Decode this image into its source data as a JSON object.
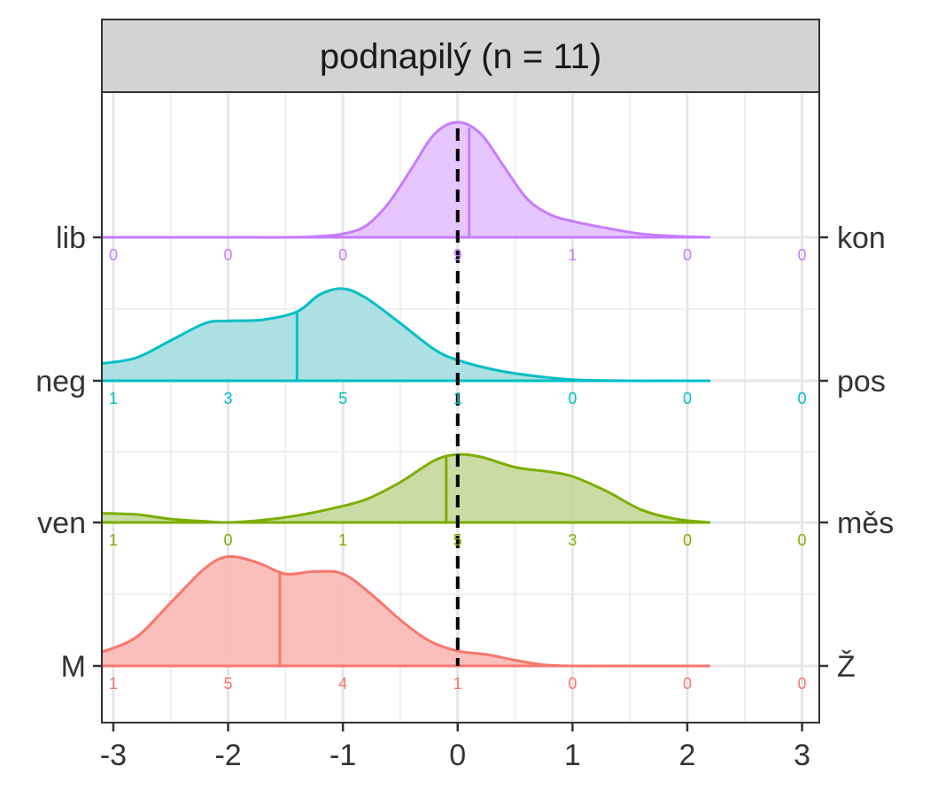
{
  "chart_data": {
    "type": "ridgeline",
    "title": "podnapilý (n = 11)",
    "xlabel": "",
    "ylabel": "",
    "xlim": [
      -3.1,
      3.15
    ],
    "x_ticks": [
      -3,
      -2,
      -1,
      0,
      1,
      2,
      3
    ],
    "x_tick_labels": [
      "-3",
      "-2",
      "-1",
      "0",
      "1",
      "2",
      "3"
    ],
    "count_positions": [
      -3,
      -2,
      -1,
      0,
      1,
      2,
      3
    ],
    "reference_line_x": 0,
    "grid": true,
    "legend": "none",
    "series": [
      {
        "left_label": "M",
        "right_label": "Ž",
        "color": "#F8766D",
        "fill": "#F9B8B3",
        "mean": -1.55,
        "counts": [
          "1",
          "5",
          "4",
          "1",
          "0",
          "0",
          "0"
        ],
        "density": [
          [
            -3.1,
            0.12
          ],
          [
            -2.8,
            0.25
          ],
          [
            -2.5,
            0.55
          ],
          [
            -2.2,
            0.85
          ],
          [
            -2.0,
            0.95
          ],
          [
            -1.75,
            0.9
          ],
          [
            -1.5,
            0.8
          ],
          [
            -1.25,
            0.82
          ],
          [
            -1.0,
            0.8
          ],
          [
            -0.75,
            0.62
          ],
          [
            -0.5,
            0.4
          ],
          [
            -0.25,
            0.22
          ],
          [
            0.0,
            0.13
          ],
          [
            0.25,
            0.1
          ],
          [
            0.5,
            0.05
          ],
          [
            0.75,
            0.01
          ],
          [
            1.0,
            0.0
          ],
          [
            1.5,
            0.0
          ],
          [
            2.0,
            0.0
          ],
          [
            2.2,
            0.0
          ]
        ]
      },
      {
        "left_label": "ven",
        "right_label": "měs",
        "color": "#7CAE00",
        "fill": "#C3D89A",
        "mean": -0.1,
        "counts": [
          "1",
          "0",
          "1",
          "5",
          "3",
          "0",
          "0"
        ],
        "density": [
          [
            -3.1,
            0.08
          ],
          [
            -2.8,
            0.07
          ],
          [
            -2.5,
            0.03
          ],
          [
            -2.2,
            0.01
          ],
          [
            -2.0,
            0.0
          ],
          [
            -1.7,
            0.02
          ],
          [
            -1.4,
            0.06
          ],
          [
            -1.1,
            0.12
          ],
          [
            -0.8,
            0.2
          ],
          [
            -0.5,
            0.35
          ],
          [
            -0.2,
            0.54
          ],
          [
            0.0,
            0.59
          ],
          [
            0.2,
            0.57
          ],
          [
            0.5,
            0.48
          ],
          [
            0.8,
            0.44
          ],
          [
            1.0,
            0.4
          ],
          [
            1.3,
            0.27
          ],
          [
            1.6,
            0.11
          ],
          [
            1.9,
            0.03
          ],
          [
            2.2,
            0.0
          ]
        ]
      },
      {
        "left_label": "neg",
        "right_label": "pos",
        "color": "#00BFC4",
        "fill": "#A3DDDF",
        "mean": -1.4,
        "counts": [
          "1",
          "3",
          "5",
          "1",
          "0",
          "0",
          "0"
        ],
        "density": [
          [
            -3.1,
            0.15
          ],
          [
            -2.8,
            0.2
          ],
          [
            -2.5,
            0.35
          ],
          [
            -2.2,
            0.5
          ],
          [
            -2.0,
            0.52
          ],
          [
            -1.7,
            0.53
          ],
          [
            -1.4,
            0.6
          ],
          [
            -1.2,
            0.75
          ],
          [
            -1.0,
            0.8
          ],
          [
            -0.8,
            0.72
          ],
          [
            -0.5,
            0.5
          ],
          [
            -0.2,
            0.27
          ],
          [
            0.0,
            0.18
          ],
          [
            0.3,
            0.1
          ],
          [
            0.6,
            0.05
          ],
          [
            1.0,
            0.01
          ],
          [
            1.5,
            0.0
          ],
          [
            2.0,
            0.0
          ],
          [
            2.2,
            0.0
          ]
        ]
      },
      {
        "left_label": "lib",
        "right_label": "kon",
        "color": "#C77CFF",
        "fill": "#E2C0FF",
        "mean": 0.1,
        "counts": [
          "0",
          "0",
          "0",
          "9",
          "1",
          "0",
          "0"
        ],
        "density": [
          [
            -3.1,
            0.0
          ],
          [
            -2.0,
            0.0
          ],
          [
            -1.5,
            0.0
          ],
          [
            -1.2,
            0.01
          ],
          [
            -1.0,
            0.03
          ],
          [
            -0.8,
            0.1
          ],
          [
            -0.6,
            0.3
          ],
          [
            -0.4,
            0.6
          ],
          [
            -0.2,
            0.9
          ],
          [
            0.0,
            1.0
          ],
          [
            0.2,
            0.9
          ],
          [
            0.4,
            0.62
          ],
          [
            0.6,
            0.34
          ],
          [
            0.8,
            0.2
          ],
          [
            1.0,
            0.14
          ],
          [
            1.3,
            0.08
          ],
          [
            1.6,
            0.03
          ],
          [
            1.9,
            0.01
          ],
          [
            2.2,
            0.0
          ]
        ]
      }
    ]
  }
}
